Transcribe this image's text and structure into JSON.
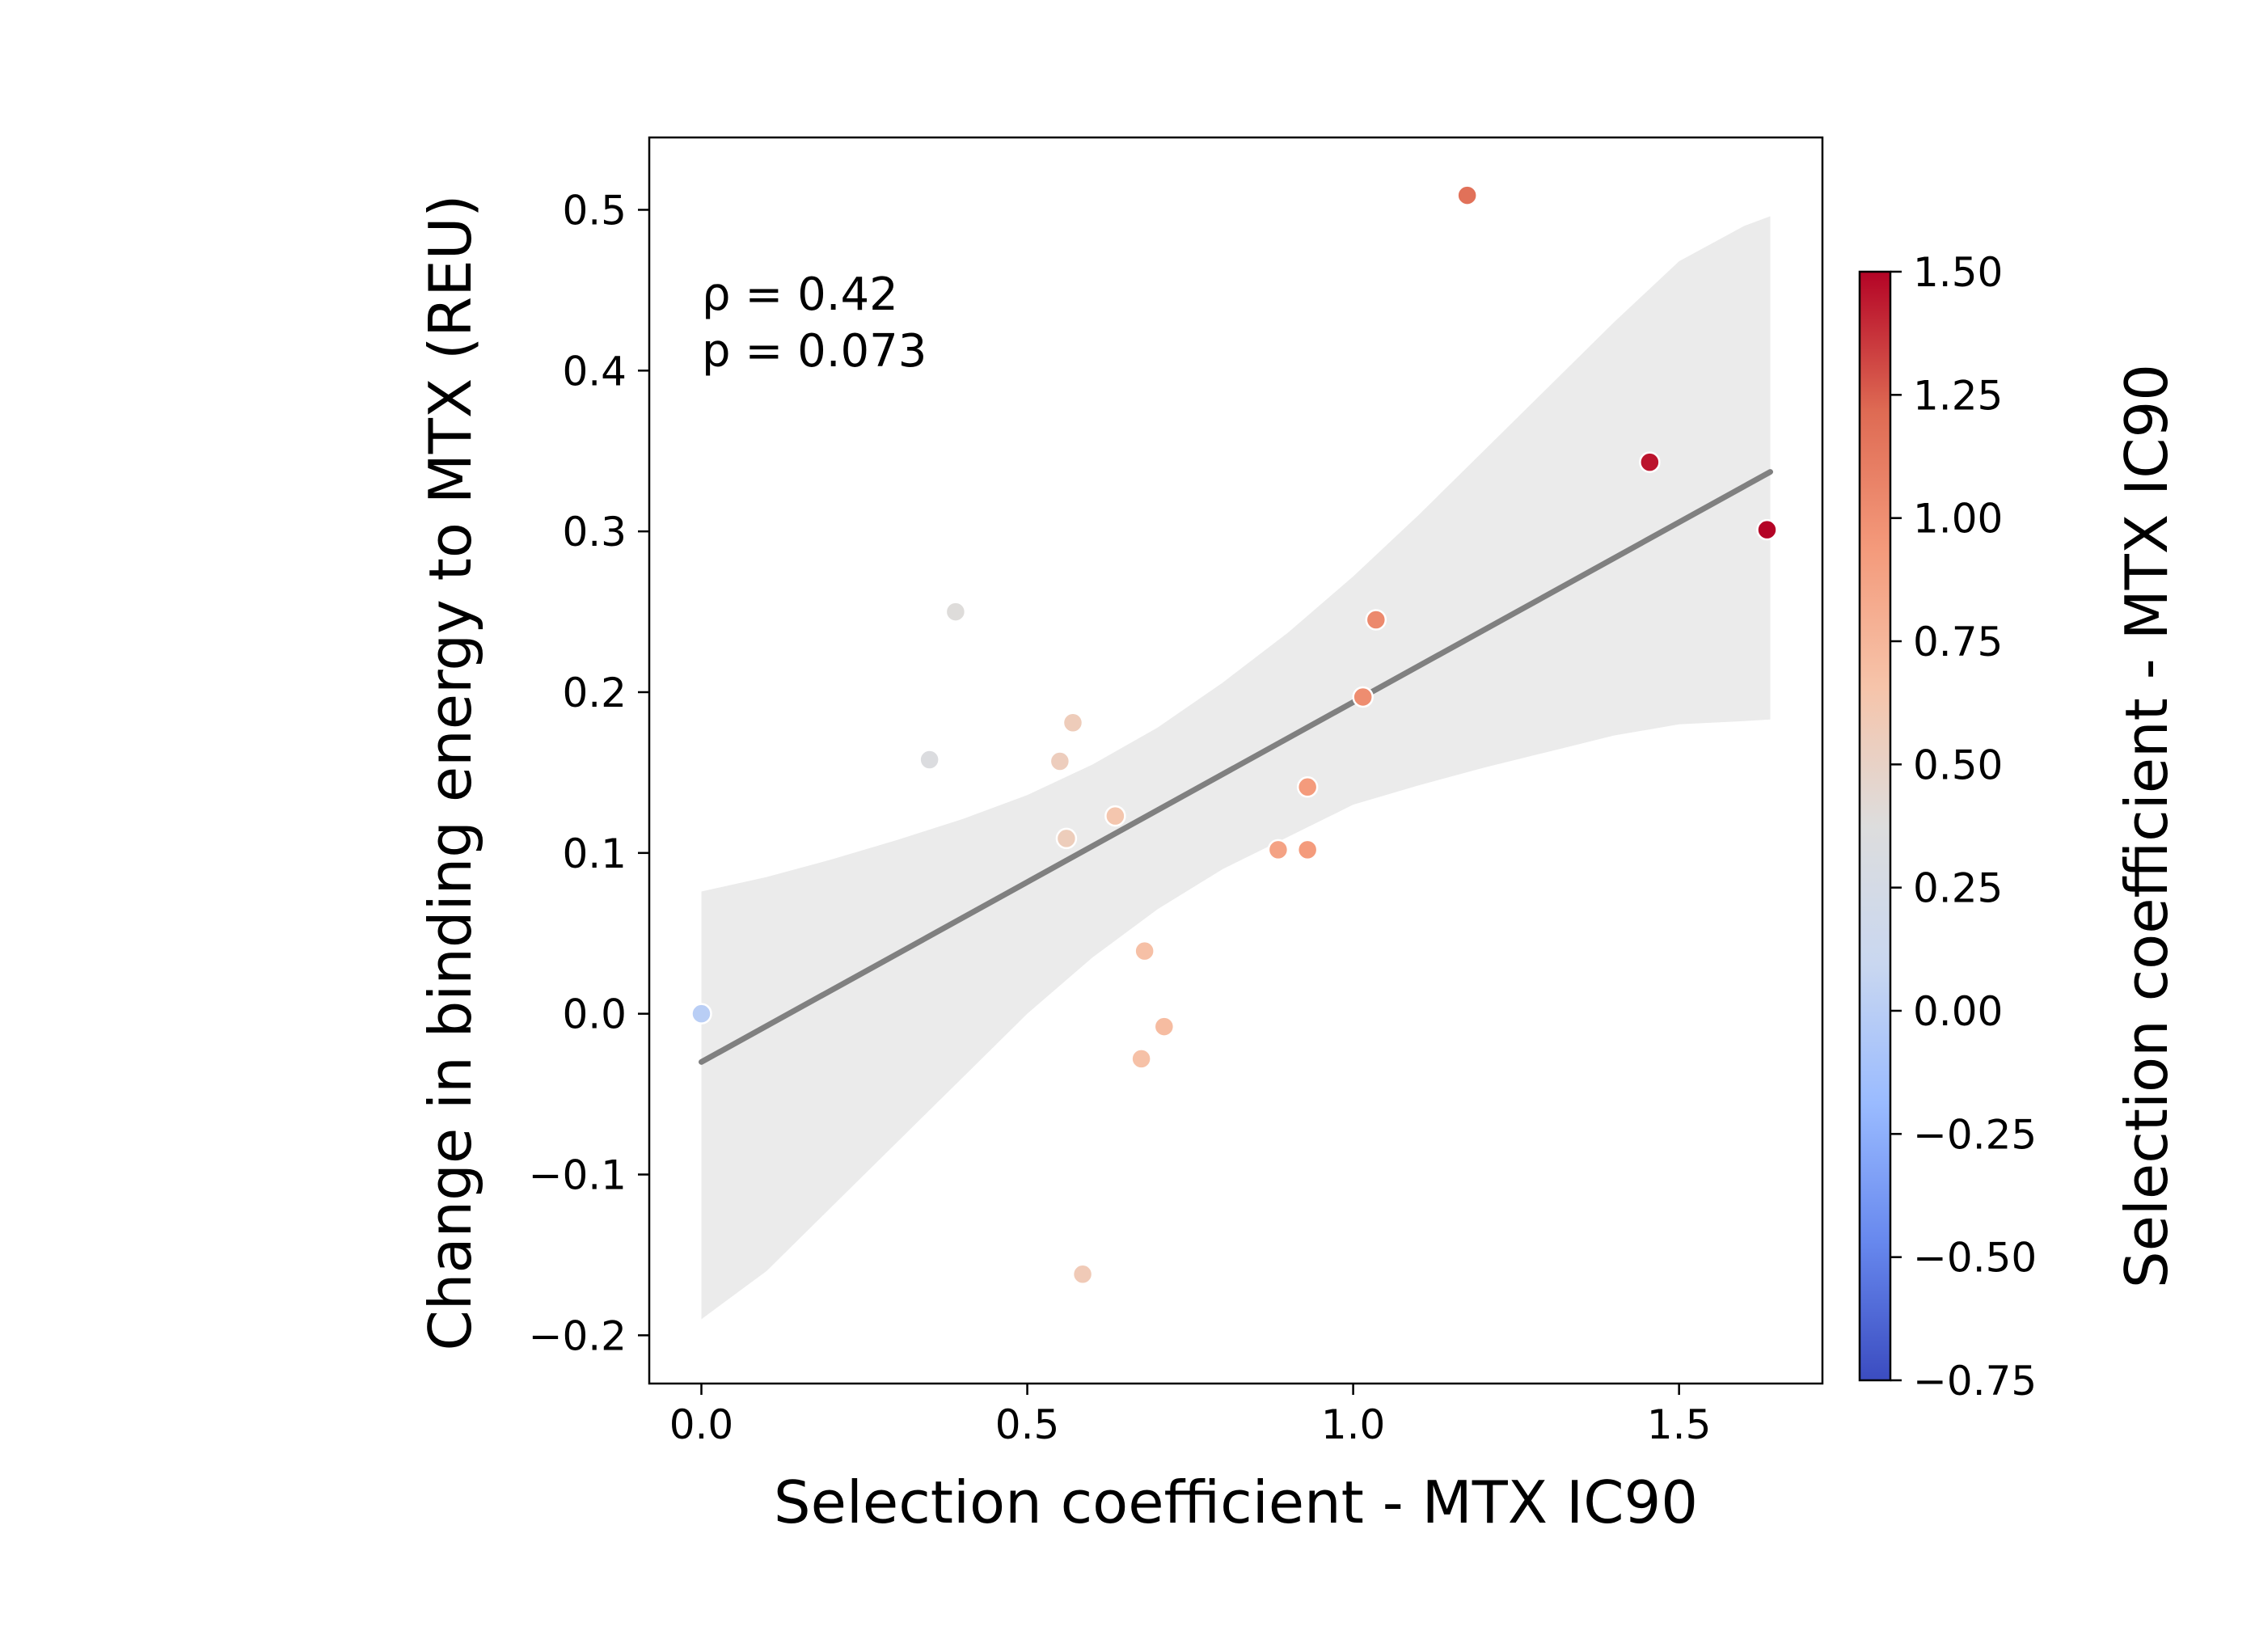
{
  "chart_data": {
    "type": "scatter",
    "xlabel": "Selection coefficient - MTX IC90",
    "ylabel": "Change in binding energy to MTX (REU)",
    "xlim": [
      -0.08,
      1.72
    ],
    "ylim": [
      -0.23,
      0.545
    ],
    "x_ticks": [
      0.0,
      0.5,
      1.0,
      1.5
    ],
    "x_tick_labels": [
      "0.0",
      "0.5",
      "1.0",
      "1.5"
    ],
    "y_ticks": [
      -0.2,
      -0.1,
      0.0,
      0.1,
      0.2,
      0.3,
      0.4,
      0.5
    ],
    "y_tick_labels": [
      "−0.2",
      "−0.1",
      "0.0",
      "0.1",
      "0.2",
      "0.3",
      "0.4",
      "0.5"
    ],
    "grid": false,
    "annotation": {
      "rho_line": "ρ = 0.42",
      "p_line": "p = 0.073"
    },
    "points": [
      {
        "x": 0.0,
        "y": 0.0
      },
      {
        "x": 0.35,
        "y": 0.158
      },
      {
        "x": 0.39,
        "y": 0.25
      },
      {
        "x": 0.55,
        "y": 0.157
      },
      {
        "x": 0.56,
        "y": 0.109
      },
      {
        "x": 0.57,
        "y": 0.181
      },
      {
        "x": 0.585,
        "y": -0.162
      },
      {
        "x": 0.635,
        "y": 0.123
      },
      {
        "x": 0.675,
        "y": -0.028
      },
      {
        "x": 0.68,
        "y": 0.039
      },
      {
        "x": 0.71,
        "y": -0.008
      },
      {
        "x": 0.885,
        "y": 0.102
      },
      {
        "x": 0.93,
        "y": 0.102
      },
      {
        "x": 0.93,
        "y": 0.141
      },
      {
        "x": 1.015,
        "y": 0.197
      },
      {
        "x": 1.035,
        "y": 0.245
      },
      {
        "x": 1.175,
        "y": 0.509
      },
      {
        "x": 1.455,
        "y": 0.343
      },
      {
        "x": 1.635,
        "y": 0.301
      }
    ],
    "regression": {
      "x": [
        0.0,
        1.64
      ],
      "y": [
        -0.03,
        0.337
      ],
      "line_color": "#808080"
    },
    "confidence_band": {
      "color": "#ebebeb",
      "x": [
        0.0,
        0.1,
        0.2,
        0.3,
        0.4,
        0.5,
        0.6,
        0.7,
        0.8,
        0.9,
        1.0,
        1.1,
        1.2,
        1.3,
        1.4,
        1.5,
        1.6,
        1.64
      ],
      "upper": [
        0.076,
        0.085,
        0.096,
        0.108,
        0.121,
        0.136,
        0.155,
        0.178,
        0.206,
        0.237,
        0.272,
        0.31,
        0.35,
        0.39,
        0.43,
        0.468,
        0.49,
        0.496
      ],
      "lower": [
        -0.19,
        -0.16,
        -0.12,
        -0.08,
        -0.04,
        0.0,
        0.035,
        0.065,
        0.09,
        0.11,
        0.13,
        0.142,
        0.153,
        0.163,
        0.173,
        0.18,
        0.182,
        0.183
      ]
    },
    "colorbar": {
      "label": "Selection coefficient - MTX IC90",
      "range": [
        -0.75,
        1.5
      ],
      "ticks": [
        1.5,
        1.25,
        1.0,
        0.75,
        0.5,
        0.25,
        0.0,
        -0.25,
        -0.5,
        -0.75
      ],
      "tick_labels": [
        "1.50",
        "1.25",
        "1.00",
        "0.75",
        "0.50",
        "0.25",
        "0.00",
        "−0.25",
        "−0.50",
        "−0.75"
      ],
      "colormap": "coolwarm",
      "stops": [
        "#3b4cc0",
        "#6788ee",
        "#9abbff",
        "#c9d7f0",
        "#dddddd",
        "#f6c4aa",
        "#f49a7b",
        "#de6a53",
        "#b40426"
      ]
    }
  }
}
